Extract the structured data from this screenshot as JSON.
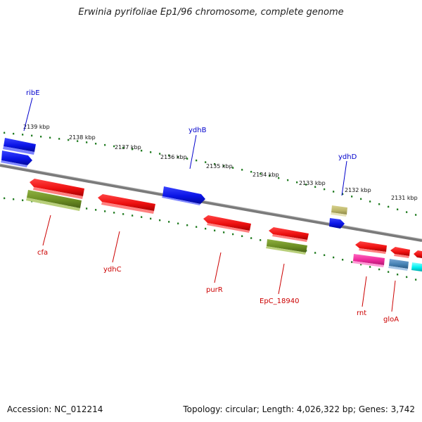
{
  "title": "Erwinia pyrifoliae Ep1/96 chromosome, complete genome",
  "footer": {
    "accession": "Accession: NC_012214",
    "topology": "Topology: circular; Length: 4,026,322 bp; Genes: 3,742"
  },
  "scale_labels": [
    "2139 kbp",
    "2138 kbp",
    "2137 kbp",
    "2136 kbp",
    "2135 kbp",
    "2134 kbp",
    "2133 kbp",
    "2132 kbp",
    "2131 kbp"
  ],
  "genes_top": [
    {
      "name": "ribE",
      "color": "#0000cc"
    },
    {
      "name": "ydhB",
      "color": "#0000cc"
    },
    {
      "name": "ydhD",
      "color": "#0000cc"
    }
  ],
  "genes_bottom": [
    {
      "name": "cfa",
      "color": "#cc0000"
    },
    {
      "name": "ydhC",
      "color": "#cc0000"
    },
    {
      "name": "purR",
      "color": "#cc0000"
    },
    {
      "name": "EpC_18940",
      "color": "#cc0000"
    },
    {
      "name": "rnt",
      "color": "#cc0000"
    },
    {
      "name": "gloA",
      "color": "#cc0000"
    }
  ],
  "colors": {
    "backbone": "#808080",
    "ticks": "#1e7a1e",
    "blue": "#0a14e6",
    "red": "#ee1111",
    "olive": "#6b8e23",
    "khaki": "#bdb76b",
    "magenta": "#ee2a9a",
    "steelblue": "#4682b4",
    "cyan": "#00ffff"
  }
}
